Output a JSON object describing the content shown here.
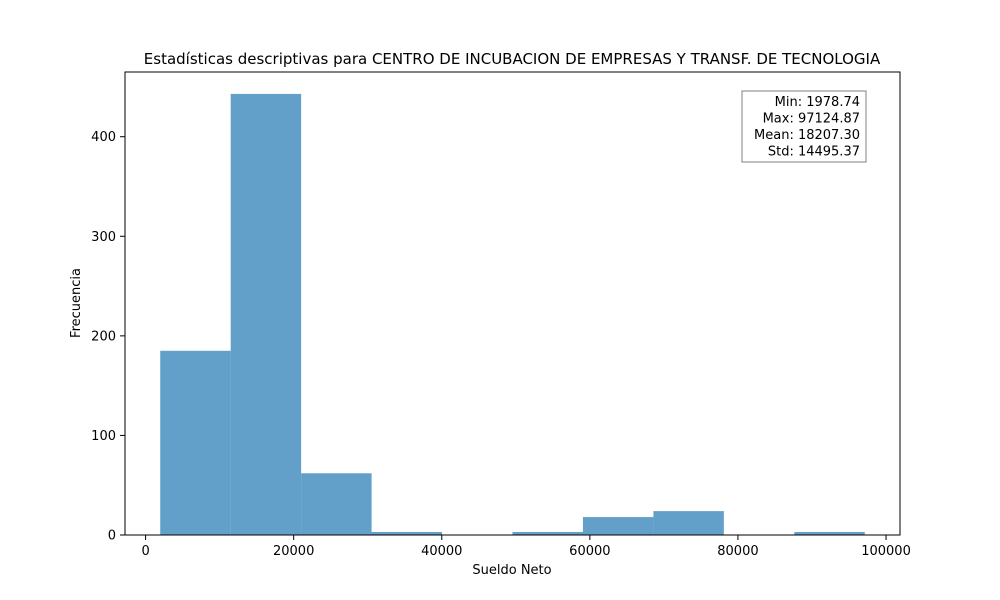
{
  "chart_data": {
    "type": "bar",
    "title": "Estadísticas descriptivas para CENTRO DE INCUBACION DE EMPRESAS Y TRANSF. DE TECNOLOGIA",
    "xlabel": "Sueldo Neto",
    "ylabel": "Frecuencia",
    "xlim": [
      -2780,
      101885
    ],
    "ylim": [
      0,
      465
    ],
    "xticks": [
      0,
      20000,
      40000,
      60000,
      80000,
      100000
    ],
    "yticks": [
      0,
      100,
      200,
      300,
      400
    ],
    "bar_color": "#1f77b4",
    "bar_opacity": 0.7,
    "bins": [
      {
        "start": 1978.74,
        "end": 11493.35,
        "count": 185
      },
      {
        "start": 11493.35,
        "end": 21007.96,
        "count": 443
      },
      {
        "start": 21007.96,
        "end": 30522.58,
        "count": 62
      },
      {
        "start": 30522.58,
        "end": 40037.19,
        "count": 3
      },
      {
        "start": 40037.19,
        "end": 49551.8,
        "count": 0
      },
      {
        "start": 49551.8,
        "end": 59066.41,
        "count": 3
      },
      {
        "start": 59066.41,
        "end": 68581.03,
        "count": 18
      },
      {
        "start": 68581.03,
        "end": 78095.64,
        "count": 24
      },
      {
        "start": 78095.64,
        "end": 87610.25,
        "count": 0
      },
      {
        "start": 87610.25,
        "end": 97124.87,
        "count": 3
      }
    ],
    "stats_box": {
      "location": "top-right",
      "lines": [
        "Min: 1978.74",
        "Max: 97124.87",
        "Mean: 18207.30",
        "Std: 14495.37"
      ]
    },
    "grid": false
  }
}
